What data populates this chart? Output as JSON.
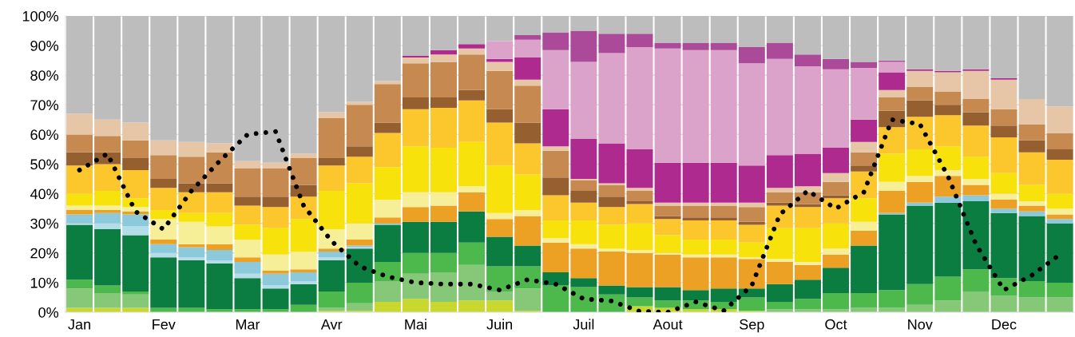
{
  "chart_data": {
    "type": "bar",
    "stacked": true,
    "categories": [
      "Jan",
      null,
      null,
      "Fev",
      null,
      null,
      "Mar",
      null,
      null,
      "Avr",
      null,
      null,
      "Mai",
      null,
      null,
      "Juin",
      null,
      null,
      "Juil",
      null,
      null,
      "Aout",
      null,
      null,
      "Sep",
      null,
      null,
      "Oct",
      null,
      null,
      "Nov",
      null,
      null,
      "Dec",
      null,
      null
    ],
    "ylim": [
      0,
      100
    ],
    "yticks": [
      {
        "value": 0,
        "label": "0%"
      },
      {
        "value": 10,
        "label": "10%"
      },
      {
        "value": 20,
        "label": "20%"
      },
      {
        "value": 30,
        "label": "30%"
      },
      {
        "value": 40,
        "label": "40%"
      },
      {
        "value": 50,
        "label": "50%"
      },
      {
        "value": 60,
        "label": "60%"
      },
      {
        "value": 70,
        "label": "70%"
      },
      {
        "value": 80,
        "label": "80%"
      },
      {
        "value": 90,
        "label": "90%"
      },
      {
        "value": 100,
        "label": "100%"
      }
    ],
    "grid": "y",
    "series": [
      {
        "color": "#c8d82e",
        "values": [
          1.5,
          1.5,
          1.5,
          0,
          0,
          0,
          0,
          0,
          0,
          0.5,
          0.5,
          3.5,
          4.5,
          3.5,
          4,
          4,
          0.5,
          0,
          0,
          0,
          2,
          1.5,
          1,
          1,
          0.5,
          0,
          0,
          0,
          0,
          0,
          0,
          0,
          0,
          0,
          0,
          0
        ]
      },
      {
        "color": "#86c878",
        "values": [
          6.5,
          5,
          4.5,
          0,
          0,
          0,
          0,
          0,
          0,
          1,
          2.5,
          7,
          8.5,
          10,
          12,
          3,
          7.5,
          0,
          0,
          0,
          0,
          0,
          0,
          0,
          0,
          1,
          1,
          1,
          1.5,
          1.5,
          2.5,
          4,
          7,
          5.5,
          5,
          5
        ]
      },
      {
        "color": "#4db84c",
        "values": [
          3,
          2.5,
          1,
          1.5,
          1.5,
          1,
          1,
          1,
          2.5,
          5.5,
          7,
          6.5,
          7,
          6.5,
          7.5,
          8.5,
          7.5,
          9,
          8.5,
          6,
          3,
          2.5,
          3,
          2.5,
          4.5,
          2.5,
          3.5,
          5.5,
          5,
          6,
          7,
          8,
          7.5,
          6,
          5.5,
          5
        ]
      },
      {
        "color": "#0b7d40",
        "values": [
          18.5,
          19,
          19,
          17,
          16,
          15.5,
          10.5,
          7,
          7,
          10.5,
          11.5,
          12.5,
          10.5,
          10.5,
          10.5,
          10,
          7,
          4.5,
          3,
          3,
          3.5,
          4.5,
          3.5,
          4.5,
          3,
          6,
          6.5,
          8.5,
          16,
          25.5,
          26.5,
          25,
          23,
          22,
          22,
          20
        ]
      },
      {
        "color": "#b3dde8",
        "values": [
          0.5,
          2,
          3,
          1.5,
          1,
          1,
          1.5,
          1,
          1,
          1,
          0.5,
          0,
          0,
          0,
          0,
          0,
          0,
          0,
          0,
          0,
          0,
          0,
          0,
          0,
          0,
          0,
          0,
          0,
          0,
          0,
          0,
          0,
          0,
          0,
          0,
          0
        ]
      },
      {
        "color": "#8ccadb",
        "values": [
          3,
          3.5,
          4,
          3,
          3.5,
          3.5,
          4,
          4,
          3,
          2,
          0.5,
          0.5,
          0,
          0,
          0,
          0,
          0,
          0,
          0,
          0,
          0,
          0,
          0,
          0,
          0,
          0,
          0,
          0,
          0,
          0.5,
          1,
          2,
          2,
          1.5,
          1.5,
          1.5
        ]
      },
      {
        "color": "#eca024",
        "values": [
          1.5,
          1,
          1,
          1.5,
          1,
          2,
          1.5,
          1,
          1,
          1,
          2,
          2,
          5,
          5.5,
          6.5,
          6,
          10,
          10,
          10,
          11.5,
          11.5,
          11,
          11,
          10.5,
          10,
          7.5,
          5,
          4.5,
          5,
          7.5,
          7,
          7,
          3.5,
          3,
          2,
          1.5
        ]
      },
      {
        "color": "#f7ee98",
        "values": [
          1.5,
          1.5,
          1.5,
          7,
          7.5,
          6,
          6,
          5.5,
          6,
          6.5,
          5.5,
          6,
          5,
          4.5,
          2,
          2,
          2,
          1.5,
          1.5,
          1,
          1,
          0.5,
          1,
          1,
          0.5,
          1,
          1,
          2,
          3,
          3,
          2,
          2,
          2,
          2,
          1.5,
          2
        ]
      },
      {
        "color": "#f7e20c",
        "values": [
          4,
          5,
          3,
          3,
          3,
          4.5,
          5,
          9,
          11,
          13,
          13.5,
          11,
          15.5,
          15,
          15,
          16,
          12,
          6,
          8,
          8,
          9,
          6,
          5,
          5,
          5,
          10.5,
          11.5,
          8.5,
          8,
          9.5,
          9,
          8,
          7.5,
          7,
          5.5,
          5
        ]
      },
      {
        "color": "#fcc72c",
        "values": [
          9.5,
          9,
          9.5,
          7.5,
          7,
          7,
          6.5,
          7,
          7.5,
          8.5,
          9,
          11.5,
          12.5,
          13.5,
          14,
          14.5,
          10.5,
          8.5,
          6,
          6,
          6.5,
          5.5,
          6.5,
          6.5,
          6,
          7.5,
          7,
          8.5,
          9,
          9,
          11,
          10.5,
          10.5,
          12,
          11,
          11.5
        ]
      },
      {
        "color": "#955f30",
        "values": [
          4.5,
          4,
          4,
          3,
          3,
          3,
          3,
          3.5,
          4,
          2.5,
          3.5,
          3.5,
          4,
          3.5,
          3.5,
          4.5,
          7,
          6,
          4,
          3.5,
          1,
          1,
          1,
          1,
          1,
          1,
          1,
          1,
          2,
          5.5,
          5.5,
          3.5,
          4.5,
          4,
          4,
          3.5
        ]
      },
      {
        "color": "#c68a50",
        "values": [
          6,
          5.5,
          6,
          8,
          9,
          10.5,
          9.5,
          9.5,
          9,
          13.5,
          14,
          13,
          11.5,
          12,
          12,
          13,
          12.5,
          9,
          3.5,
          4,
          3.5,
          3.5,
          4,
          4,
          5,
          3.5,
          4,
          4.5,
          4.5,
          4.5,
          4.5,
          4.5,
          4.5,
          5.5,
          5.5,
          5.5
        ]
      },
      {
        "color": "#e6c6a6",
        "values": [
          7,
          5.5,
          6,
          5,
          5,
          3,
          2.5,
          2,
          1.5,
          2,
          1,
          1,
          2,
          2.5,
          2,
          3,
          2,
          1.5,
          0.5,
          0.5,
          1,
          1,
          1,
          1,
          1.5,
          1.5,
          2,
          3,
          3.5,
          2.5,
          5.5,
          6.5,
          9.5,
          10,
          8.5,
          9
        ]
      },
      {
        "color": "#ae2a8f",
        "values": [
          0,
          0,
          0,
          0,
          0,
          0,
          0,
          0,
          0,
          0,
          0,
          0,
          0.5,
          1.5,
          1.5,
          1,
          7.5,
          12.5,
          13.5,
          13.5,
          13,
          13.5,
          13.5,
          13.5,
          12.5,
          11,
          11,
          8.5,
          7.5,
          6,
          0.5,
          0.5,
          0.5,
          0.5,
          0,
          0
        ]
      },
      {
        "color": "#dca3ca",
        "values": [
          0,
          0,
          0,
          0,
          0,
          0,
          0,
          0,
          0,
          0,
          0,
          0,
          0,
          0,
          0,
          6,
          6,
          20,
          26,
          30.5,
          34.5,
          38.5,
          38,
          38,
          34.5,
          32.5,
          29.5,
          26.5,
          17.5,
          3.5,
          0,
          0,
          0,
          0,
          0,
          0
        ]
      },
      {
        "color": "#aa4a98",
        "values": [
          0,
          0,
          0,
          0,
          0,
          0,
          0,
          0,
          0,
          0,
          0,
          0,
          0,
          0,
          0,
          0,
          1.5,
          6,
          10.5,
          6.5,
          4.5,
          2,
          2.5,
          2.5,
          5.5,
          5.5,
          4,
          3.5,
          2,
          0.5,
          0,
          0,
          0,
          0,
          0,
          0
        ]
      },
      {
        "color": "#bebdbd",
        "values": [
          33,
          35,
          36,
          42,
          42.5,
          43,
          49,
          49.5,
          46.5,
          32.5,
          29,
          22,
          13.5,
          11.5,
          9.5,
          8.5,
          6.5,
          5.5,
          5,
          6,
          6,
          9,
          9,
          9,
          10.5,
          9,
          13,
          14.5,
          15.5,
          15,
          18,
          18.5,
          18,
          21,
          28,
          30.5
        ]
      },
      {
        "type": "line",
        "color": "#000000",
        "line_style": "dotted",
        "values": [
          48,
          53.5,
          34,
          28,
          41,
          51,
          60,
          61,
          36,
          24,
          15.5,
          12,
          10,
          9.5,
          9.5,
          7.5,
          11,
          9.5,
          4.5,
          3.8,
          0.3,
          0,
          3.5,
          0.5,
          9,
          33,
          41,
          35,
          40.5,
          65,
          63.5,
          46,
          23,
          7.5,
          12.5,
          19.5
        ]
      }
    ]
  }
}
